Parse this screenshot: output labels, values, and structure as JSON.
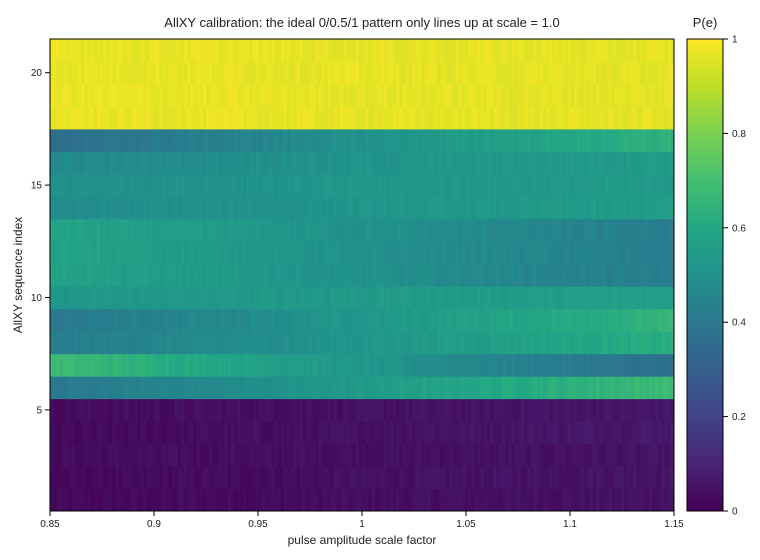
{
  "chart_data": {
    "type": "heatmap",
    "title": "AllXY calibration: the ideal 0/0.5/1 pattern only lines up at scale = 1.0",
    "xlabel": "pulse amplitude scale factor",
    "ylabel": "AllXY sequence index",
    "xlim": [
      0.85,
      1.15
    ],
    "ylim": [
      0.5,
      21.5
    ],
    "x_ticks": [
      0.85,
      0.9,
      0.95,
      1,
      1.05,
      1.1,
      1.15
    ],
    "x_tick_labels": [
      "0.85",
      "0.9",
      "0.95",
      "1",
      "1.05",
      "1.1",
      "1.15"
    ],
    "y_ticks": [
      5,
      10,
      15,
      20
    ],
    "y_tick_labels": [
      "5",
      "10",
      "15",
      "20"
    ],
    "colorbar": {
      "title": "P(e)",
      "range": [
        0,
        1
      ],
      "ticks": [
        0,
        0.2,
        0.4,
        0.6,
        0.8,
        1
      ],
      "tick_labels": [
        "0",
        "0.2",
        "0.4",
        "0.6",
        "0.8",
        "1"
      ],
      "colormap": "viridis",
      "colors": [
        "#440154",
        "#482475",
        "#414487",
        "#355f8d",
        "#2a788e",
        "#21918c",
        "#22a884",
        "#44bf70",
        "#7ad151",
        "#bddf26",
        "#fde725"
      ]
    },
    "rows": [
      {
        "index": 1,
        "start": 0.02,
        "end": 0.05
      },
      {
        "index": 2,
        "start": 0.02,
        "end": 0.06
      },
      {
        "index": 3,
        "start": 0.03,
        "end": 0.05
      },
      {
        "index": 4,
        "start": 0.02,
        "end": 0.07
      },
      {
        "index": 5,
        "start": 0.03,
        "end": 0.06
      },
      {
        "index": 6,
        "start": 0.4,
        "end": 0.68
      },
      {
        "index": 7,
        "start": 0.68,
        "end": 0.36
      },
      {
        "index": 8,
        "start": 0.42,
        "end": 0.62
      },
      {
        "index": 9,
        "start": 0.4,
        "end": 0.65
      },
      {
        "index": 10,
        "start": 0.52,
        "end": 0.56
      },
      {
        "index": 11,
        "start": 0.58,
        "end": 0.42
      },
      {
        "index": 12,
        "start": 0.58,
        "end": 0.42
      },
      {
        "index": 13,
        "start": 0.58,
        "end": 0.42
      },
      {
        "index": 14,
        "start": 0.48,
        "end": 0.55
      },
      {
        "index": 15,
        "start": 0.5,
        "end": 0.54
      },
      {
        "index": 16,
        "start": 0.47,
        "end": 0.55
      },
      {
        "index": 17,
        "start": 0.36,
        "end": 0.64
      },
      {
        "index": 18,
        "start": 0.97,
        "end": 0.96
      },
      {
        "index": 19,
        "start": 0.97,
        "end": 0.96
      },
      {
        "index": 20,
        "start": 0.97,
        "end": 0.96
      },
      {
        "index": 21,
        "start": 0.97,
        "end": 0.96
      }
    ],
    "columns": 200,
    "grid": false,
    "legend": "colorbar-right"
  }
}
